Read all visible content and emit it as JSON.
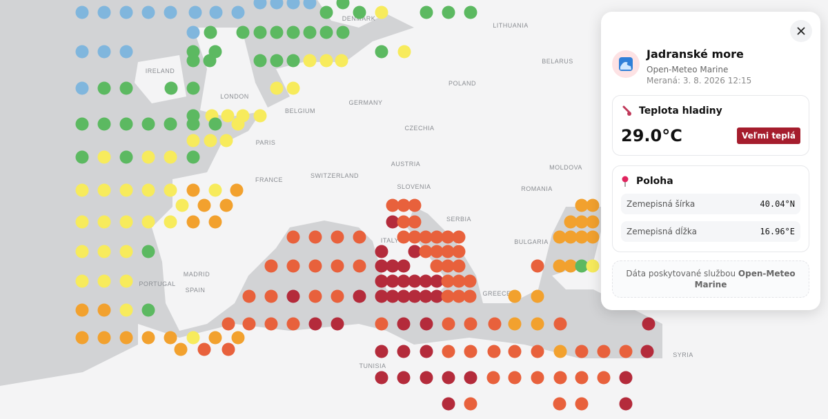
{
  "map": {
    "labels": [
      "DENMARK",
      "LITHUANIA",
      "BELARUS",
      "IRELAND",
      "LONDON",
      "BELGIUM",
      "GERMANY",
      "POLAND",
      "CZECHIA",
      "PARIS",
      "AUSTRIA",
      "MOLDOVA",
      "FRANCE",
      "SWITZERLAND",
      "SLOVENIA",
      "ROMANIA",
      "SERBIA",
      "ITALY",
      "BULGARIA",
      "MADRID",
      "PORTUGAL",
      "SPAIN",
      "GREECE",
      "TUNISIA",
      "SYRIA"
    ]
  },
  "panel": {
    "title": "Jadranské more",
    "source": "Open-Meteo Marine",
    "measured": "Meraná: 3. 8. 2026 12:15",
    "temperature": {
      "heading": "Teplota hladiny",
      "value": "29.0°C",
      "badge": "Veľmi teplá"
    },
    "location": {
      "heading": "Poloha",
      "rows": [
        [
          "Zemepisná šírka",
          "40.04°N"
        ],
        [
          "Zemepisná dĺžka",
          "16.96°E"
        ]
      ]
    },
    "footer": {
      "text": "Dáta poskytované službou",
      "provider": "Open-Meteo Marine"
    }
  }
}
